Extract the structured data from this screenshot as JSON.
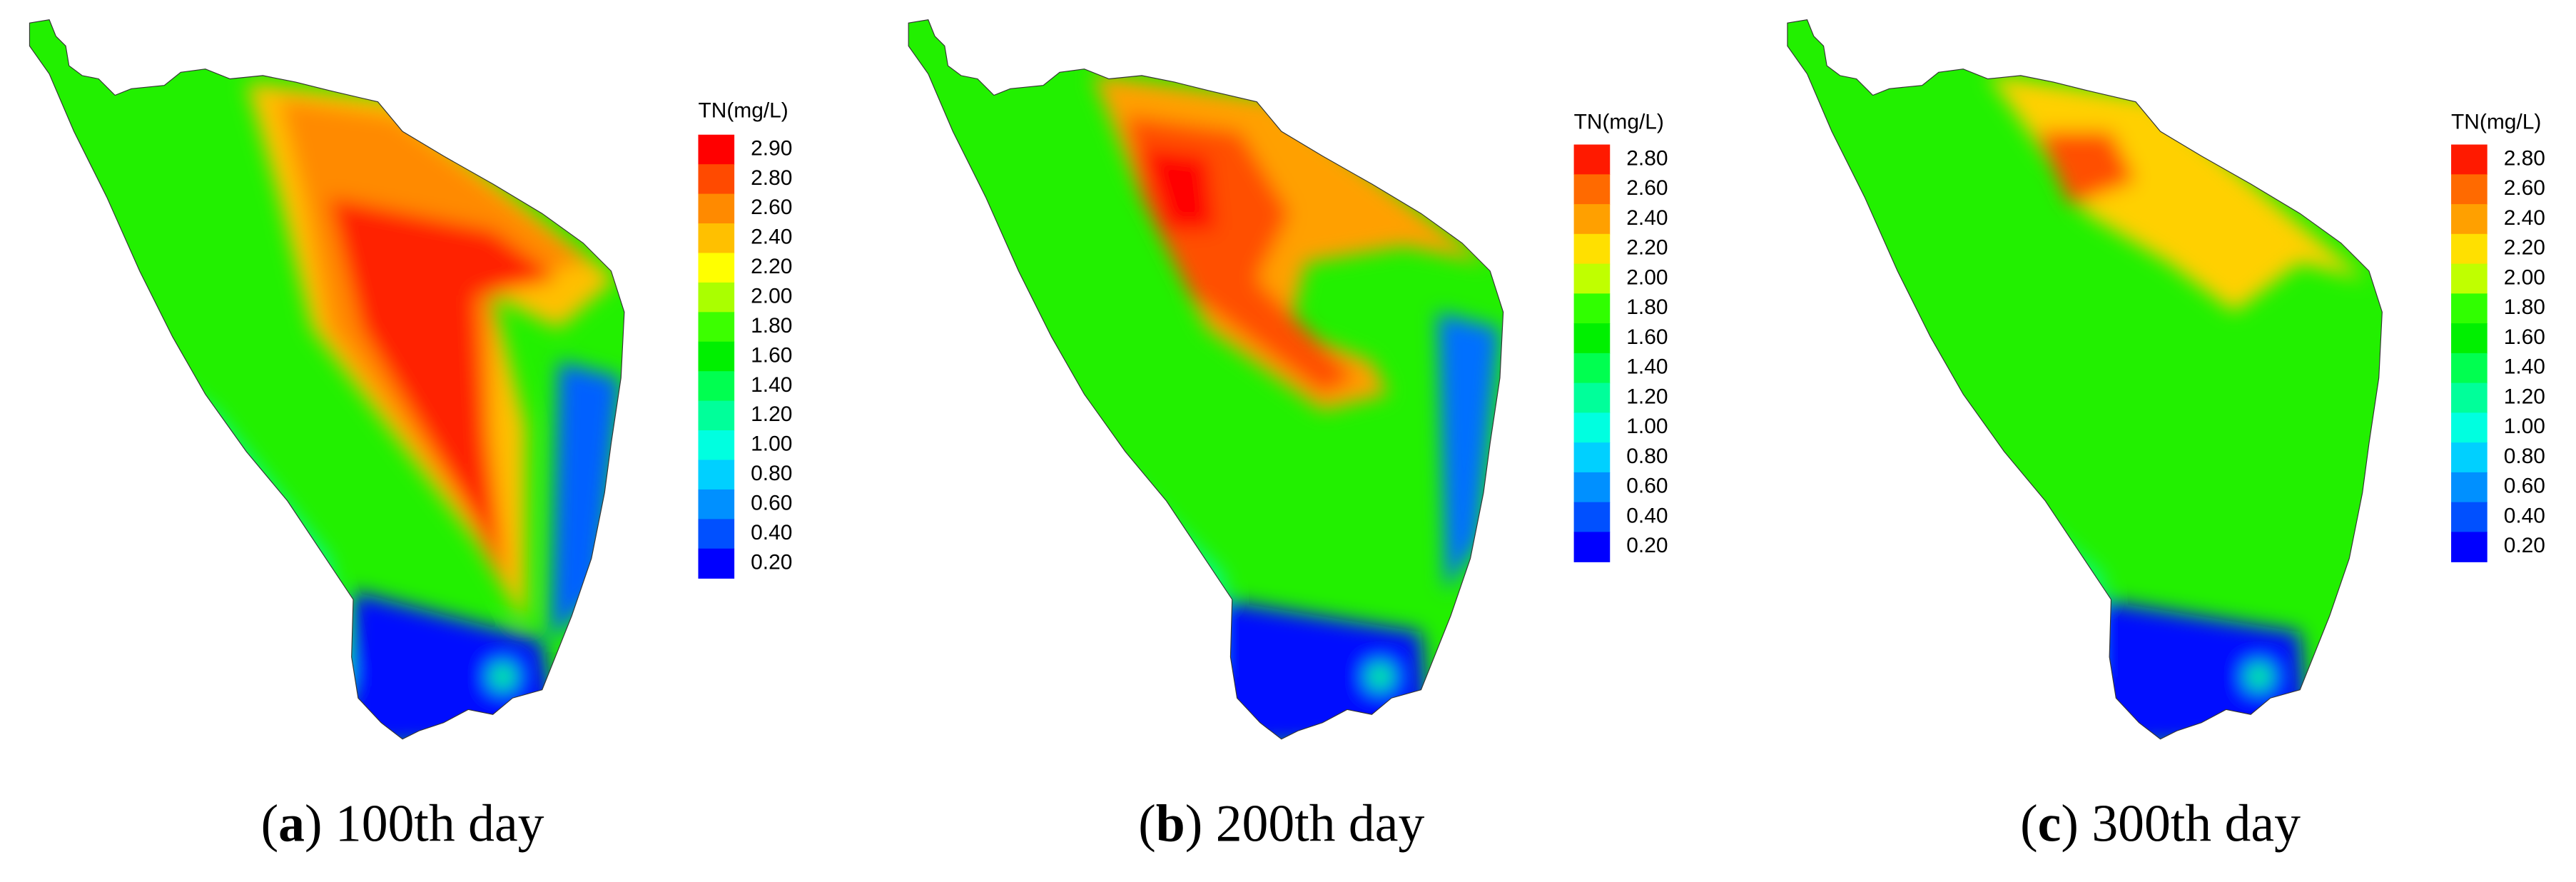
{
  "panels": [
    {
      "legend": {
        "title": "TN(mg/L)",
        "items": [
          {
            "label": "2.90",
            "color": "#ff0000"
          },
          {
            "label": "2.80",
            "color": "#ff4a00"
          },
          {
            "label": "2.60",
            "color": "#ff8a00"
          },
          {
            "label": "2.40",
            "color": "#ffc000"
          },
          {
            "label": "2.20",
            "color": "#ffff00"
          },
          {
            "label": "2.00",
            "color": "#aaff00"
          },
          {
            "label": "1.80",
            "color": "#3cff00"
          },
          {
            "label": "1.60",
            "color": "#00f000"
          },
          {
            "label": "1.40",
            "color": "#00ff50"
          },
          {
            "label": "1.20",
            "color": "#00ff9a"
          },
          {
            "label": "1.00",
            "color": "#00ffe0"
          },
          {
            "label": "0.80",
            "color": "#00d0ff"
          },
          {
            "label": "0.60",
            "color": "#0090ff"
          },
          {
            "label": "0.40",
            "color": "#0050ff"
          },
          {
            "label": "0.20",
            "color": "#0000ff"
          }
        ]
      },
      "caption": [
        "(",
        "a",
        ") 100th day"
      ]
    },
    {
      "legend": {
        "title": "TN(mg/L)",
        "items": [
          {
            "label": "2.80",
            "color": "#ff1a00"
          },
          {
            "label": "2.60",
            "color": "#ff6a00"
          },
          {
            "label": "2.40",
            "color": "#ffa000"
          },
          {
            "label": "2.20",
            "color": "#ffe000"
          },
          {
            "label": "2.00",
            "color": "#c0ff00"
          },
          {
            "label": "1.80",
            "color": "#30ff00"
          },
          {
            "label": "1.60",
            "color": "#00f000"
          },
          {
            "label": "1.40",
            "color": "#00ff50"
          },
          {
            "label": "1.20",
            "color": "#00ff9a"
          },
          {
            "label": "1.00",
            "color": "#00ffe0"
          },
          {
            "label": "0.80",
            "color": "#00d0ff"
          },
          {
            "label": "0.60",
            "color": "#0090ff"
          },
          {
            "label": "0.40",
            "color": "#0050ff"
          },
          {
            "label": "0.20",
            "color": "#0000ff"
          }
        ]
      },
      "caption": [
        "(",
        "b",
        ") 200th day"
      ]
    },
    {
      "legend": {
        "title": "TN(mg/L)",
        "items": [
          {
            "label": "2.80",
            "color": "#ff1a00"
          },
          {
            "label": "2.60",
            "color": "#ff6a00"
          },
          {
            "label": "2.40",
            "color": "#ffa000"
          },
          {
            "label": "2.20",
            "color": "#ffe000"
          },
          {
            "label": "2.00",
            "color": "#c0ff00"
          },
          {
            "label": "1.80",
            "color": "#30ff00"
          },
          {
            "label": "1.60",
            "color": "#00f000"
          },
          {
            "label": "1.40",
            "color": "#00ff50"
          },
          {
            "label": "1.20",
            "color": "#00ff9a"
          },
          {
            "label": "1.00",
            "color": "#00ffe0"
          },
          {
            "label": "0.80",
            "color": "#00d0ff"
          },
          {
            "label": "0.60",
            "color": "#0090ff"
          },
          {
            "label": "0.40",
            "color": "#0050ff"
          },
          {
            "label": "0.20",
            "color": "#0000ff"
          }
        ]
      },
      "caption": [
        "(",
        "c",
        ") 300th day"
      ]
    }
  ]
}
